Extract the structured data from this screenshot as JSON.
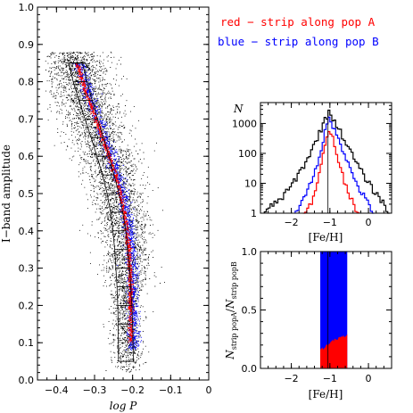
{
  "legend": {
    "red_text": "red − strip along pop A",
    "blue_text": "blue − strip along pop B",
    "red_color": "#ff0000",
    "blue_color": "#0000ff"
  },
  "chart_data": [
    {
      "type": "scatter",
      "title": "",
      "xlabel": "log P",
      "ylabel": "I−band amplitude",
      "xlim": [
        -0.45,
        0.0
      ],
      "ylim": [
        0.0,
        1.0
      ],
      "xticks": [
        "−0.4",
        "−0.3",
        "−0.2",
        "−0.1",
        "0"
      ],
      "yticks": [
        "0.0",
        "0.1",
        "0.2",
        "0.3",
        "0.4",
        "0.5",
        "0.6",
        "0.7",
        "0.8",
        "0.9",
        "1.0"
      ],
      "series": [
        {
          "name": "",
          "color": "#000000",
          "description_points": "field stars (dense cloud)"
        },
        {
          "name": "pop B strip",
          "color": "#0000ff"
        },
        {
          "name": "pop A strip",
          "color": "#ff0000"
        }
      ],
      "ridge_line": {
        "x": [
          -0.349,
          -0.335,
          -0.318,
          -0.3,
          -0.282,
          -0.265,
          -0.248,
          -0.235,
          -0.225,
          -0.218,
          -0.213,
          -0.21,
          -0.208
        ],
        "y": [
          0.85,
          0.8,
          0.75,
          0.7,
          0.65,
          0.6,
          0.55,
          0.5,
          0.45,
          0.4,
          0.35,
          0.3,
          0.25
        ]
      },
      "strip_outline": {
        "left_x": [
          -0.368,
          -0.356,
          -0.341,
          -0.325,
          -0.309,
          -0.294,
          -0.279,
          -0.267,
          -0.258,
          -0.252,
          -0.247,
          -0.244,
          -0.241,
          -0.239,
          -0.238,
          -0.237
        ],
        "right_x": [
          -0.332,
          -0.32,
          -0.306,
          -0.292,
          -0.277,
          -0.262,
          -0.249,
          -0.236,
          -0.226,
          -0.218,
          -0.213,
          -0.208,
          -0.205,
          -0.202,
          -0.2,
          -0.198
        ],
        "y": [
          0.85,
          0.8,
          0.75,
          0.7,
          0.65,
          0.6,
          0.55,
          0.5,
          0.45,
          0.4,
          0.35,
          0.3,
          0.25,
          0.2,
          0.15,
          0.05
        ]
      }
    },
    {
      "type": "line",
      "title": "",
      "xlabel": "[Fe/H]",
      "ylabel": "N",
      "yscale": "log",
      "xlim": [
        -2.8,
        0.6
      ],
      "ylim": [
        1,
        5000
      ],
      "xticks": [
        "−2",
        "−1",
        "0"
      ],
      "yticks": [
        "1",
        "10",
        "100",
        "1000"
      ],
      "series": [
        {
          "name": "",
          "color": "#000000",
          "x": [
            -2.7,
            -2.5,
            -2.3,
            -2.1,
            -1.9,
            -1.7,
            -1.5,
            -1.3,
            -1.1,
            -1.05,
            -0.9,
            -0.7,
            -0.5,
            -0.3,
            -0.1,
            0.1,
            0.3,
            0.5
          ],
          "y": [
            1,
            2,
            3,
            6,
            15,
            40,
            120,
            500,
            1800,
            2600,
            1200,
            400,
            120,
            40,
            15,
            6,
            3,
            1
          ]
        },
        {
          "name": "",
          "color": "#0000ff",
          "x": [
            -1.9,
            -1.7,
            -1.5,
            -1.3,
            -1.2,
            -1.1,
            -1.05,
            -0.9,
            -0.7,
            -0.5,
            -0.3,
            -0.1,
            0.1
          ],
          "y": [
            1,
            4,
            10,
            70,
            300,
            900,
            1500,
            700,
            150,
            30,
            8,
            3,
            1
          ]
        },
        {
          "name": "",
          "color": "#ff0000",
          "x": [
            -1.7,
            -1.5,
            -1.4,
            -1.3,
            -1.2,
            -1.1,
            -1.05,
            -0.95,
            -0.85,
            -0.7,
            -0.55,
            -0.4,
            -0.3
          ],
          "y": [
            1,
            2,
            5,
            20,
            90,
            380,
            650,
            300,
            80,
            20,
            5,
            2,
            1
          ]
        }
      ],
      "marker_line_x": -1.05
    },
    {
      "type": "area",
      "title": "",
      "xlabel": "[Fe/H]",
      "ylabel": "N_strip popA / N_strip popB",
      "xlim": [
        -2.8,
        0.6
      ],
      "ylim": [
        0.0,
        1.0
      ],
      "xticks": [
        "−2",
        "−1",
        "0"
      ],
      "yticks": [
        "0.0",
        "0.5",
        "1.0"
      ],
      "x": [
        -1.25,
        -1.2,
        -1.1,
        -1.0,
        -0.9,
        -0.8,
        -0.7,
        -0.6,
        -0.55
      ],
      "series": [
        {
          "name": "",
          "color": "#ff0000",
          "values": [
            0.16,
            0.17,
            0.19,
            0.22,
            0.24,
            0.25,
            0.27,
            0.28,
            0.29
          ]
        },
        {
          "name": "",
          "color": "#0000ff",
          "values": [
            1.0,
            1.0,
            1.0,
            1.0,
            1.0,
            1.0,
            1.0,
            1.0,
            1.0
          ]
        }
      ]
    }
  ]
}
